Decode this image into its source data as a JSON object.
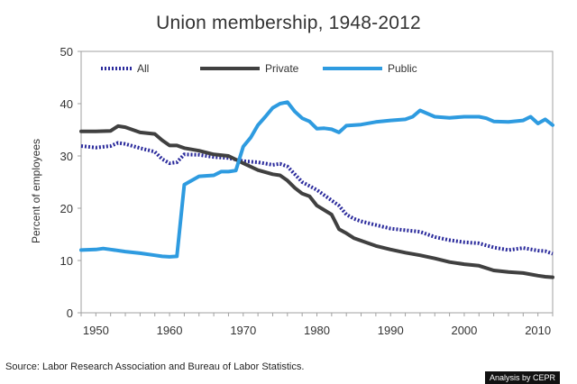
{
  "chart_data": {
    "type": "line",
    "title": "Union membership, 1948-2012",
    "xlabel": "",
    "ylabel": "Percent of employees",
    "xlim": [
      1948,
      2012
    ],
    "ylim": [
      0,
      50
    ],
    "x_ticks": [
      1950,
      1960,
      1970,
      1980,
      1990,
      2000,
      2010
    ],
    "y_ticks": [
      0,
      10,
      20,
      30,
      40,
      50
    ],
    "x_tick_labels": [
      "1950",
      "1960",
      "1970",
      "1980",
      "1990",
      "2000",
      "2010"
    ],
    "y_tick_labels": [
      "0",
      "10",
      "20",
      "30",
      "40",
      "50"
    ],
    "grid": false,
    "legend_position": "top",
    "series": [
      {
        "name": "All",
        "color": "#2b2b9c",
        "style": "dotted",
        "points": [
          [
            1948,
            31.9
          ],
          [
            1950,
            31.6
          ],
          [
            1952,
            31.9
          ],
          [
            1953,
            32.5
          ],
          [
            1954,
            32.3
          ],
          [
            1956,
            31.5
          ],
          [
            1958,
            30.8
          ],
          [
            1959,
            29.4
          ],
          [
            1960,
            28.6
          ],
          [
            1961,
            28.8
          ],
          [
            1962,
            30.3
          ],
          [
            1964,
            30.2
          ],
          [
            1966,
            29.8
          ],
          [
            1968,
            29.6
          ],
          [
            1970,
            29.0
          ],
          [
            1972,
            28.8
          ],
          [
            1974,
            28.3
          ],
          [
            1975,
            28.5
          ],
          [
            1976,
            28.0
          ],
          [
            1977,
            26.5
          ],
          [
            1978,
            25.0
          ],
          [
            1980,
            23.5
          ],
          [
            1982,
            21.5
          ],
          [
            1983,
            20.5
          ],
          [
            1984,
            18.8
          ],
          [
            1985,
            18.0
          ],
          [
            1986,
            17.5
          ],
          [
            1988,
            16.8
          ],
          [
            1990,
            16.1
          ],
          [
            1992,
            15.8
          ],
          [
            1994,
            15.5
          ],
          [
            1996,
            14.5
          ],
          [
            1998,
            13.9
          ],
          [
            2000,
            13.5
          ],
          [
            2002,
            13.3
          ],
          [
            2004,
            12.5
          ],
          [
            2006,
            12.0
          ],
          [
            2008,
            12.4
          ],
          [
            2010,
            11.9
          ],
          [
            2011,
            11.8
          ],
          [
            2012,
            11.3
          ]
        ]
      },
      {
        "name": "Private",
        "color": "#404040",
        "style": "solid",
        "points": [
          [
            1948,
            34.7
          ],
          [
            1950,
            34.7
          ],
          [
            1952,
            34.8
          ],
          [
            1953,
            35.7
          ],
          [
            1954,
            35.5
          ],
          [
            1956,
            34.5
          ],
          [
            1958,
            34.2
          ],
          [
            1959,
            33.0
          ],
          [
            1960,
            32.0
          ],
          [
            1961,
            32.0
          ],
          [
            1962,
            31.5
          ],
          [
            1964,
            31.0
          ],
          [
            1966,
            30.3
          ],
          [
            1968,
            30.0
          ],
          [
            1970,
            28.6
          ],
          [
            1972,
            27.3
          ],
          [
            1974,
            26.5
          ],
          [
            1975,
            26.3
          ],
          [
            1976,
            25.3
          ],
          [
            1977,
            23.9
          ],
          [
            1978,
            22.8
          ],
          [
            1979,
            22.3
          ],
          [
            1980,
            20.5
          ],
          [
            1982,
            18.8
          ],
          [
            1983,
            16.0
          ],
          [
            1984,
            15.2
          ],
          [
            1985,
            14.3
          ],
          [
            1986,
            13.8
          ],
          [
            1988,
            12.8
          ],
          [
            1990,
            12.1
          ],
          [
            1992,
            11.5
          ],
          [
            1994,
            11.0
          ],
          [
            1996,
            10.4
          ],
          [
            1998,
            9.7
          ],
          [
            2000,
            9.3
          ],
          [
            2002,
            9.0
          ],
          [
            2004,
            8.1
          ],
          [
            2006,
            7.8
          ],
          [
            2008,
            7.6
          ],
          [
            2010,
            7.1
          ],
          [
            2011,
            6.9
          ],
          [
            2012,
            6.8
          ]
        ]
      },
      {
        "name": "Public",
        "color": "#2e9be0",
        "style": "solid",
        "points": [
          [
            1948,
            12.0
          ],
          [
            1950,
            12.1
          ],
          [
            1951,
            12.3
          ],
          [
            1952,
            12.1
          ],
          [
            1954,
            11.7
          ],
          [
            1956,
            11.4
          ],
          [
            1958,
            11.0
          ],
          [
            1959,
            10.8
          ],
          [
            1960,
            10.7
          ],
          [
            1961,
            10.8
          ],
          [
            1962,
            24.5
          ],
          [
            1963,
            25.3
          ],
          [
            1964,
            26.1
          ],
          [
            1966,
            26.3
          ],
          [
            1967,
            27.0
          ],
          [
            1968,
            27.0
          ],
          [
            1969,
            27.2
          ],
          [
            1970,
            31.8
          ],
          [
            1971,
            33.5
          ],
          [
            1972,
            35.9
          ],
          [
            1973,
            37.5
          ],
          [
            1974,
            39.2
          ],
          [
            1975,
            40.0
          ],
          [
            1976,
            40.3
          ],
          [
            1977,
            38.5
          ],
          [
            1978,
            37.2
          ],
          [
            1979,
            36.6
          ],
          [
            1980,
            35.2
          ],
          [
            1981,
            35.3
          ],
          [
            1982,
            35.1
          ],
          [
            1983,
            34.5
          ],
          [
            1984,
            35.8
          ],
          [
            1986,
            36.0
          ],
          [
            1988,
            36.5
          ],
          [
            1990,
            36.8
          ],
          [
            1992,
            37.0
          ],
          [
            1993,
            37.5
          ],
          [
            1994,
            38.7
          ],
          [
            1995,
            38.1
          ],
          [
            1996,
            37.5
          ],
          [
            1998,
            37.3
          ],
          [
            2000,
            37.5
          ],
          [
            2002,
            37.5
          ],
          [
            2003,
            37.2
          ],
          [
            2004,
            36.6
          ],
          [
            2006,
            36.5
          ],
          [
            2008,
            36.8
          ],
          [
            2009,
            37.5
          ],
          [
            2010,
            36.2
          ],
          [
            2011,
            37.0
          ],
          [
            2012,
            35.9
          ]
        ]
      }
    ]
  },
  "footer": {
    "source": "Source: Labor Research Association and Bureau of Labor Statistics.",
    "credit": "Analysis by CEPR"
  }
}
